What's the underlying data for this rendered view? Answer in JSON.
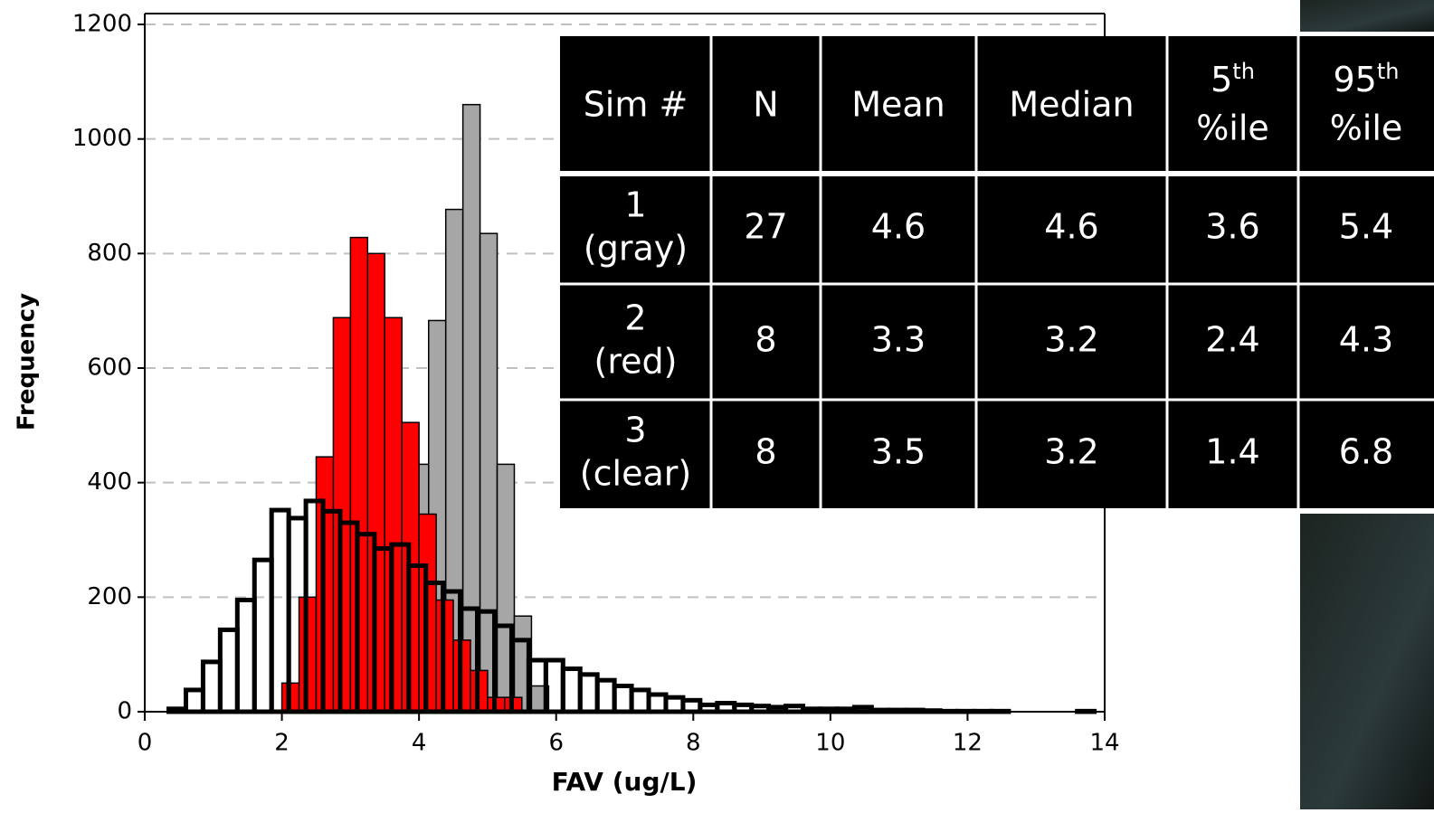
{
  "chart_data": {
    "type": "histogram",
    "xlabel": "FAV (ug/L)",
    "ylabel": "Frequency",
    "xlim": [
      0,
      14
    ],
    "xticks": [
      0,
      2,
      4,
      6,
      8,
      10,
      12,
      14
    ],
    "ylim": [
      0,
      1200
    ],
    "yticks": [
      0,
      200,
      400,
      600,
      800,
      1000,
      1200
    ],
    "grid": true,
    "series": [
      {
        "color": "#a6a6a6",
        "stroke": "#000000",
        "stroke_width": 1.5,
        "bins": [
          3.89,
          4.14,
          4.39,
          4.64,
          4.89,
          5.14,
          5.39,
          5.64,
          5.89
        ],
        "values": [
          432,
          683,
          877,
          1060,
          835,
          432,
          167,
          45
        ]
      },
      {
        "color": "#ff0000",
        "stroke": "#000000",
        "stroke_width": 1.5,
        "bins": [
          2.0,
          2.25,
          2.5,
          2.75,
          3.0,
          3.25,
          3.5,
          3.75,
          4.0,
          4.25,
          4.5,
          4.75,
          5.0,
          5.25,
          5.5
        ],
        "values": [
          50,
          200,
          445,
          688,
          828,
          800,
          688,
          505,
          345,
          195,
          125,
          72,
          25,
          25
        ]
      },
      {
        "color": "none",
        "stroke": "#000000",
        "stroke_width": 5,
        "bins": [
          0.35,
          0.6,
          0.85,
          1.1,
          1.35,
          1.6,
          1.85,
          2.1,
          2.35,
          2.6,
          2.85,
          3.1,
          3.35,
          3.6,
          3.85,
          4.1,
          4.35,
          4.6,
          4.85,
          5.1,
          5.35,
          5.6,
          5.85,
          6.1,
          6.35,
          6.6,
          6.85,
          7.1,
          7.35,
          7.6,
          7.85,
          8.1,
          8.35,
          8.6,
          8.85,
          9.1,
          9.35,
          9.6,
          9.85,
          10.1,
          10.35,
          10.6,
          10.85,
          11.1,
          11.35,
          11.6,
          11.85,
          12.1,
          12.35,
          12.6,
          12.85,
          13.1,
          13.35,
          13.6,
          13.85
        ],
        "values": [
          5,
          38,
          87,
          143,
          195,
          265,
          352,
          338,
          368,
          350,
          330,
          310,
          285,
          292,
          255,
          225,
          210,
          180,
          175,
          150,
          125,
          90,
          90,
          75,
          65,
          55,
          45,
          38,
          30,
          25,
          20,
          12,
          15,
          12,
          10,
          8,
          10,
          5,
          5,
          5,
          8,
          3,
          3,
          3,
          2,
          1,
          1,
          1,
          1,
          0,
          0,
          0,
          0,
          1
        ]
      }
    ]
  },
  "table": {
    "header": [
      {
        "text": "Sim #"
      },
      {
        "text": "N"
      },
      {
        "text": "Mean"
      },
      {
        "text": "Median"
      },
      {
        "text": "5",
        "sup": "th",
        "line2": "%ile"
      },
      {
        "text": "95",
        "sup": "th",
        "line2": "%ile"
      }
    ],
    "rows": [
      {
        "sim": "1",
        "label": "(gray)",
        "cells": [
          "27",
          "4.6",
          "4.6",
          "3.6",
          "5.4"
        ]
      },
      {
        "sim": "2",
        "label": "(red)",
        "cells": [
          "8",
          "3.3",
          "3.2",
          "2.4",
          "4.3"
        ]
      },
      {
        "sim": "3",
        "label": "(clear)",
        "cells": [
          "8",
          "3.5",
          "3.2",
          "1.4",
          "6.8"
        ]
      }
    ]
  }
}
